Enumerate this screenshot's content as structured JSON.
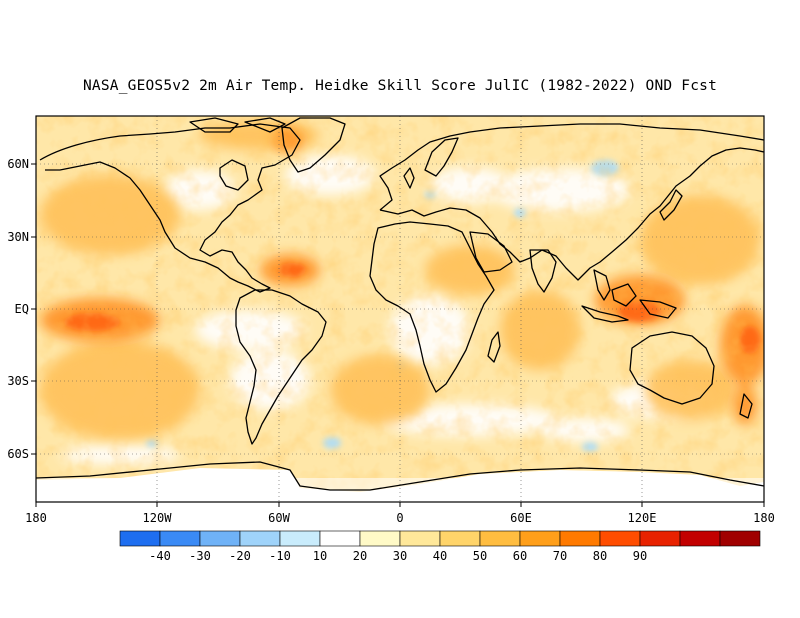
{
  "title": "NASA_GEOS5v2 2m Air Temp. Heidke Skill Score JulIC (1982-2022) OND Fcst",
  "x_ticks": [
    "180",
    "120W",
    "60W",
    "0",
    "60E",
    "120E",
    "180"
  ],
  "y_ticks": [
    "60N",
    "30N",
    "EQ",
    "30S",
    "60S"
  ],
  "colorbar": {
    "labels": [
      "-40",
      "-30",
      "-20",
      "-10",
      "10",
      "20",
      "30",
      "40",
      "50",
      "60",
      "70",
      "80",
      "90"
    ],
    "colors": [
      "#1e6ef0",
      "#3a8af5",
      "#6fb2f7",
      "#9fd3fa",
      "#c9ecfc",
      "#ffffff",
      "#fffac7",
      "#ffe89a",
      "#ffd46a",
      "#ffbd40",
      "#ff9f1a",
      "#ff7a00",
      "#ff4d00",
      "#e82200",
      "#c20000",
      "#a00000"
    ]
  },
  "chart_data": {
    "type": "heatmap",
    "variable": "2m Air Temp. Heidke Skill Score",
    "xlim": [
      -180,
      180
    ],
    "ylim": [
      -80,
      80
    ],
    "x_ticks_deg": [
      -180,
      -120,
      -60,
      0,
      60,
      120,
      180
    ],
    "y_ticks_deg": [
      60,
      30,
      0,
      -30,
      -60
    ],
    "grid": true,
    "color_levels": [
      -40,
      -30,
      -20,
      -10,
      10,
      20,
      30,
      40,
      50,
      60,
      70,
      80,
      90
    ]
  }
}
